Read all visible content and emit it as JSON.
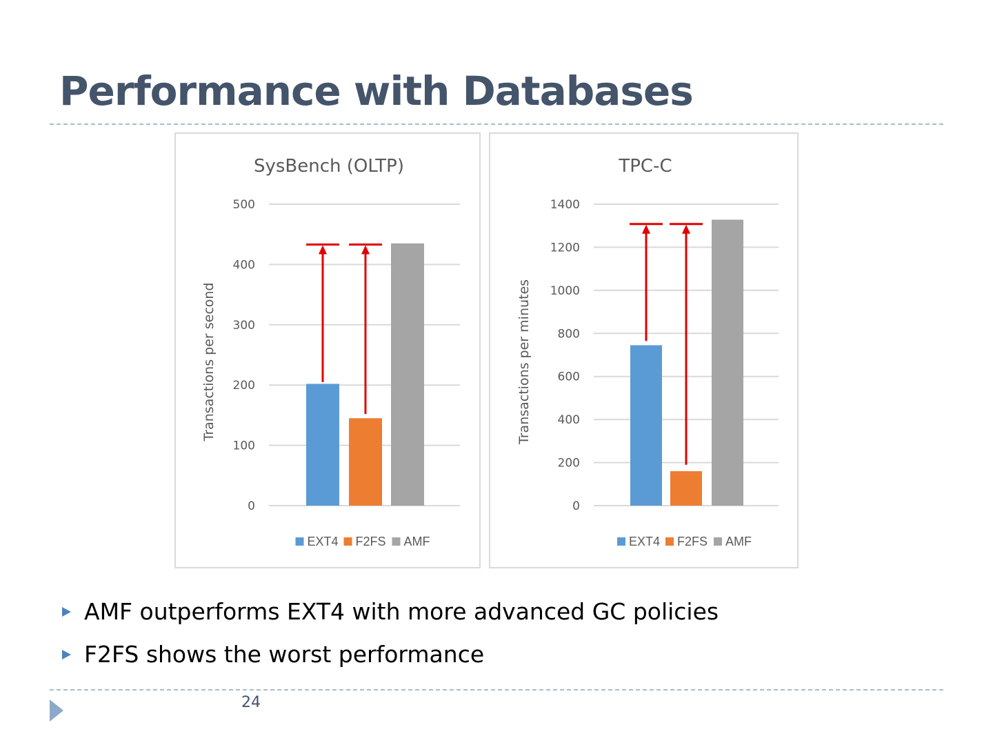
{
  "slide": {
    "title": "Performance with Databases",
    "bullets": [
      "AMF outperforms EXT4 with more advanced GC policies",
      "F2FS shows the worst performance"
    ],
    "page_number": "24"
  },
  "colors": {
    "title": "#44546a",
    "EXT4": "#5b9bd5",
    "F2FS": "#ed7d31",
    "AMF": "#a5a5a5",
    "arrow": "#e00000",
    "gridline": "#d9d9d9",
    "axis_text": "#595959"
  },
  "chart_data": [
    {
      "type": "bar",
      "title": "SysBench (OLTP)",
      "categories": [
        "EXT4",
        "F2FS",
        "AMF"
      ],
      "values": [
        202,
        145,
        435
      ],
      "xlabel": "",
      "ylabel": "Transactions per second",
      "ylim": [
        0,
        500
      ],
      "yticks": [
        0,
        100,
        200,
        300,
        400,
        500
      ],
      "ytick_labels": [
        "0",
        "100",
        "200",
        "300",
        "400",
        "500"
      ],
      "grid": true,
      "legend": [
        "EXT4",
        "F2FS",
        "AMF"
      ],
      "legend_position": "bottom",
      "annotations": [
        {
          "type": "arrow",
          "from_category": "EXT4",
          "from_value": 205,
          "to_value": 433
        },
        {
          "type": "arrow",
          "from_category": "F2FS",
          "from_value": 152,
          "to_value": 433
        }
      ]
    },
    {
      "type": "bar",
      "title": "TPC-C",
      "categories": [
        "EXT4",
        "F2FS",
        "AMF"
      ],
      "values": [
        745,
        160,
        1328
      ],
      "xlabel": "",
      "ylabel": "Transactions per minutes",
      "ylim": [
        0,
        1400
      ],
      "yticks": [
        0,
        200,
        400,
        600,
        800,
        1000,
        1200,
        1400
      ],
      "ytick_labels": [
        "0",
        "200",
        "400",
        "600",
        "800",
        "1000",
        "1200",
        "1400"
      ],
      "grid": true,
      "legend": [
        "EXT4",
        "F2FS",
        "AMF"
      ],
      "legend_position": "bottom",
      "annotations": [
        {
          "type": "arrow",
          "from_category": "EXT4",
          "from_value": 765,
          "to_value": 1308
        },
        {
          "type": "arrow",
          "from_category": "F2FS",
          "from_value": 190,
          "to_value": 1308
        }
      ]
    }
  ]
}
